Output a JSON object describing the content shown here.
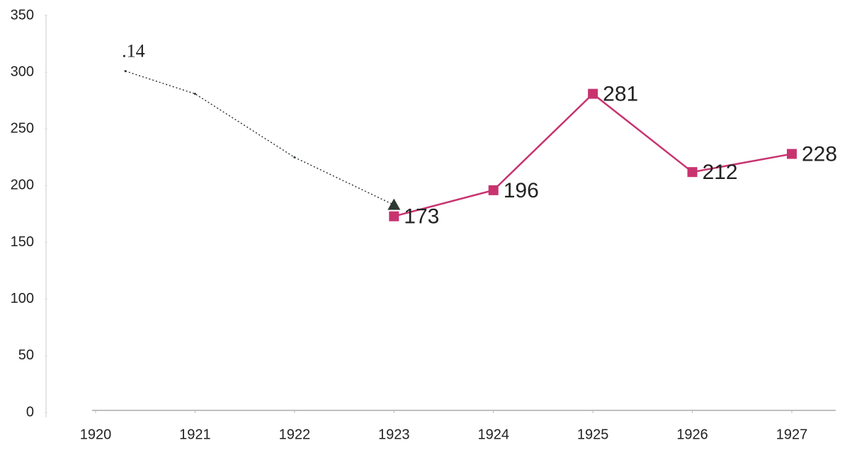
{
  "chart_data": {
    "type": "line",
    "annotation": ".14",
    "xlim": [
      1920,
      1927
    ],
    "xticks": [
      1920,
      1921,
      1922,
      1923,
      1924,
      1925,
      1926,
      1927
    ],
    "ylim": [
      0,
      350
    ],
    "yticks": [
      0,
      50,
      100,
      150,
      200,
      250,
      300,
      350
    ],
    "series": [
      {
        "color": "#2f3a33",
        "marker": "triangle",
        "dashed": true,
        "x": [
          1920.3,
          1921,
          1922,
          1923
        ],
        "values": [
          301,
          281,
          225,
          183
        ]
      },
      {
        "color": "#c8336f",
        "marker": "square",
        "x": [
          1923,
          1924,
          1925,
          1926,
          1927
        ],
        "values": [
          173,
          196,
          281,
          212,
          228
        ]
      }
    ]
  }
}
